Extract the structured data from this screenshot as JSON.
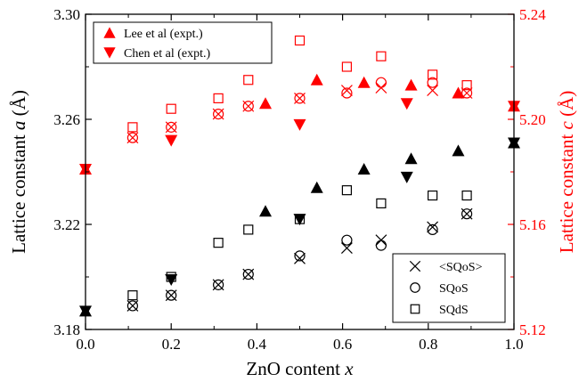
{
  "chart_data": {
    "type": "scatter",
    "xlabel": {
      "text": "ZnO content ",
      "italic": "x"
    },
    "ylabel_left": {
      "text": "Lattice constant ",
      "italic": "a",
      "unit": " (Å)"
    },
    "ylabel_right": {
      "text": "Lattice constant ",
      "italic": "c",
      "unit": " (Å)"
    },
    "xlim": [
      0.0,
      1.0
    ],
    "ylim_left": [
      3.18,
      3.3
    ],
    "ylim_right": [
      5.12,
      5.24
    ],
    "xticks": [
      0.0,
      0.2,
      0.4,
      0.6,
      0.8,
      1.0
    ],
    "xtick_labels": [
      "0.0",
      "0.2",
      "0.4",
      "0.6",
      "0.8",
      "1.0"
    ],
    "yticks_left": [
      3.18,
      3.22,
      3.26,
      3.3
    ],
    "ytick_labels_left": [
      "3.18",
      "3.22",
      "3.26",
      "3.30"
    ],
    "yticks_right": [
      5.12,
      5.16,
      5.2,
      5.24
    ],
    "ytick_labels_right": [
      "5.12",
      "5.16",
      "5.20",
      "5.24"
    ],
    "colors": {
      "a_axis": "#000000",
      "c_axis": "#ff0000"
    },
    "legend_top": {
      "placement": "top-left",
      "entries": [
        {
          "label": "Lee et al (expt.)",
          "marker": "triangle-up",
          "color": "#ff0000"
        },
        {
          "label": "Chen et al (expt.)",
          "marker": "triangle-down",
          "color": "#ff0000"
        }
      ]
    },
    "legend_bottom": {
      "placement": "bottom-right",
      "entries": [
        {
          "label": "<SQoS>",
          "marker": "x",
          "color": "#000000"
        },
        {
          "label": "SQoS",
          "marker": "circle-open",
          "color": "#000000"
        },
        {
          "label": "SQdS",
          "marker": "square-open",
          "color": "#000000"
        }
      ]
    },
    "series": [
      {
        "axis": "a",
        "marker": "triangle-up",
        "color": "#000000",
        "x": [
          0.0,
          0.42,
          0.54,
          0.65,
          0.76,
          0.87,
          1.0
        ],
        "y": [
          3.187,
          3.225,
          3.234,
          3.241,
          3.245,
          3.248,
          3.251
        ]
      },
      {
        "axis": "a",
        "marker": "triangle-down",
        "color": "#000000",
        "x": [
          0.0,
          0.2,
          0.5,
          0.75,
          1.0
        ],
        "y": [
          3.187,
          3.199,
          3.222,
          3.238,
          3.251
        ]
      },
      {
        "axis": "a",
        "marker": "x",
        "color": "#000000",
        "x": [
          0.11,
          0.2,
          0.31,
          0.38,
          0.5,
          0.61,
          0.69,
          0.81,
          0.89
        ],
        "y": [
          3.189,
          3.193,
          3.197,
          3.201,
          3.207,
          3.211,
          3.214,
          3.219,
          3.224
        ]
      },
      {
        "axis": "a",
        "marker": "circle-open",
        "color": "#000000",
        "x": [
          0.11,
          0.2,
          0.31,
          0.38,
          0.5,
          0.61,
          0.69,
          0.81,
          0.89
        ],
        "y": [
          3.189,
          3.193,
          3.197,
          3.201,
          3.208,
          3.214,
          3.212,
          3.218,
          3.224
        ]
      },
      {
        "axis": "a",
        "marker": "square-open",
        "color": "#000000",
        "x": [
          0.11,
          0.2,
          0.31,
          0.38,
          0.5,
          0.61,
          0.69,
          0.81,
          0.89
        ],
        "y": [
          3.193,
          3.2,
          3.213,
          3.218,
          3.222,
          3.233,
          3.228,
          3.231,
          3.231
        ]
      },
      {
        "axis": "c",
        "marker": "triangle-up",
        "color": "#ff0000",
        "x": [
          0.0,
          0.42,
          0.54,
          0.65,
          0.76,
          0.87,
          1.0
        ],
        "y": [
          5.181,
          5.206,
          5.215,
          5.214,
          5.213,
          5.21,
          5.205
        ]
      },
      {
        "axis": "c",
        "marker": "triangle-down",
        "color": "#ff0000",
        "x": [
          0.0,
          0.2,
          0.5,
          0.75,
          1.0
        ],
        "y": [
          5.181,
          5.192,
          5.198,
          5.206,
          5.205
        ]
      },
      {
        "axis": "c",
        "marker": "x",
        "color": "#ff0000",
        "x": [
          0.11,
          0.2,
          0.31,
          0.38,
          0.5,
          0.61,
          0.69,
          0.81,
          0.89
        ],
        "y": [
          5.193,
          5.197,
          5.202,
          5.205,
          5.208,
          5.211,
          5.212,
          5.211,
          5.21
        ]
      },
      {
        "axis": "c",
        "marker": "circle-open",
        "color": "#ff0000",
        "x": [
          0.11,
          0.2,
          0.31,
          0.38,
          0.5,
          0.61,
          0.69,
          0.81,
          0.89
        ],
        "y": [
          5.193,
          5.197,
          5.202,
          5.205,
          5.208,
          5.21,
          5.214,
          5.214,
          5.21
        ]
      },
      {
        "axis": "c",
        "marker": "square-open",
        "color": "#ff0000",
        "x": [
          0.11,
          0.2,
          0.31,
          0.38,
          0.5,
          0.61,
          0.69,
          0.81,
          0.89
        ],
        "y": [
          5.197,
          5.204,
          5.208,
          5.215,
          5.23,
          5.22,
          5.224,
          5.217,
          5.213
        ]
      }
    ]
  }
}
